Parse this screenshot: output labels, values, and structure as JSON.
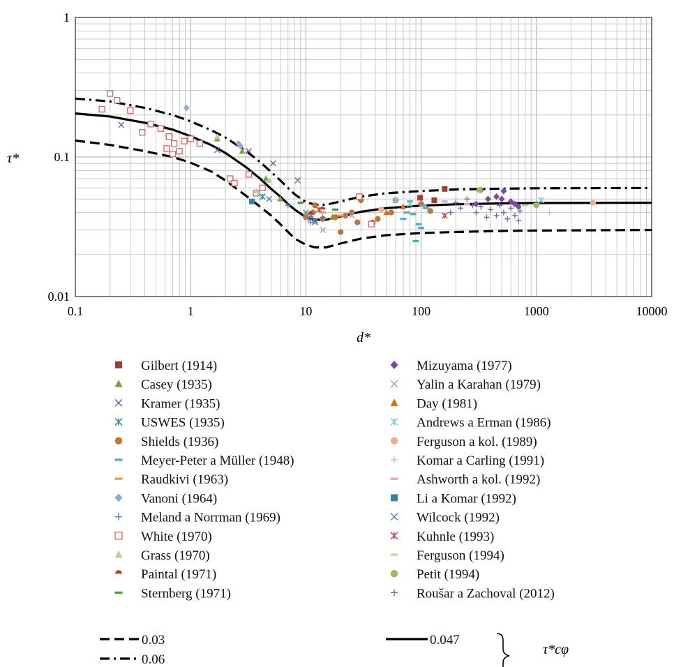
{
  "chart_data": {
    "type": "scatter",
    "x_scale": "log",
    "y_scale": "log",
    "xlim": [
      0.1,
      10000
    ],
    "ylim": [
      0.01,
      1
    ],
    "grid": true,
    "xlabel": "d*",
    "ylabel": "τ*",
    "x_ticks": [
      "0.1",
      "1",
      "10",
      "100",
      "1000",
      "10000"
    ],
    "y_ticks": [
      "0.01",
      "0.1",
      "1"
    ],
    "legend_placement": "below",
    "series": [
      {
        "name": "Gilbert (1914)",
        "marker": "square",
        "color": "#a33a3a",
        "points": [
          [
            160,
            0.059
          ],
          [
            98,
            0.051
          ],
          [
            130,
            0.049
          ]
        ]
      },
      {
        "name": "Casey (1935)",
        "marker": "triangle",
        "color": "#77a043",
        "points": [
          [
            1.7,
            0.135
          ],
          [
            2.8,
            0.11
          ],
          [
            4.5,
            0.07
          ],
          [
            17,
            0.037
          ],
          [
            6,
            0.05
          ]
        ]
      },
      {
        "name": "Kramer (1935)",
        "marker": "x",
        "color": "#7b5aa6",
        "points": [
          [
            0.25,
            0.17
          ],
          [
            1.7,
            0.112
          ],
          [
            3.2,
            0.11
          ],
          [
            5.2,
            0.09
          ],
          [
            8.5,
            0.068
          ],
          [
            12,
            0.034
          ],
          [
            11,
            0.036
          ]
        ]
      },
      {
        "name": "USWES (1935)",
        "marker": "asterisk",
        "color": "#3a8fa0",
        "points": [
          [
            4.2,
            0.052
          ],
          [
            11,
            0.038
          ],
          [
            12,
            0.035
          ]
        ]
      },
      {
        "name": "Shields (1936)",
        "marker": "circle",
        "color": "#c0763a",
        "points": [
          [
            10,
            0.037
          ],
          [
            11.5,
            0.04
          ],
          [
            12,
            0.045
          ],
          [
            14,
            0.036
          ],
          [
            18,
            0.037
          ],
          [
            20,
            0.029
          ],
          [
            22,
            0.038
          ],
          [
            25,
            0.04
          ],
          [
            28,
            0.034
          ],
          [
            30,
            0.049
          ],
          [
            38,
            0.034
          ],
          [
            42,
            0.036
          ],
          [
            55,
            0.04
          ],
          [
            60,
            0.049
          ],
          [
            100,
            0.046
          ],
          [
            120,
            0.041
          ]
        ]
      },
      {
        "name": "Meyer-Peter a Müller (1948)",
        "marker": "dash",
        "color": "#4bacc6",
        "points": [
          [
            70,
            0.036
          ],
          [
            75,
            0.04
          ],
          [
            80,
            0.048
          ],
          [
            90,
            0.025
          ],
          [
            95,
            0.033
          ],
          [
            100,
            0.031
          ],
          [
            105,
            0.045
          ],
          [
            110,
            0.043
          ],
          [
            85,
            0.039
          ]
        ]
      },
      {
        "name": "Raudkivi (1963)",
        "marker": "dash",
        "color": "#f79646",
        "points": [
          [
            14,
            0.04
          ],
          [
            20,
            0.038
          ]
        ]
      },
      {
        "name": "Vanoni (1964)",
        "marker": "diamond",
        "color": "#8eaad8",
        "points": [
          [
            0.92,
            0.225
          ],
          [
            2.6,
            0.125
          ],
          [
            2.7,
            0.12
          ]
        ]
      },
      {
        "name": "Meland a Norrman (1969)",
        "marker": "plus",
        "color": "#4f81bd",
        "points": [
          [
            7,
            0.045
          ],
          [
            11,
            0.034
          ],
          [
            14,
            0.037
          ]
        ]
      },
      {
        "name": "White (1970)",
        "marker": "open-square",
        "color": "#d06565",
        "points": [
          [
            0.17,
            0.22
          ],
          [
            0.2,
            0.285
          ],
          [
            0.23,
            0.255
          ],
          [
            0.3,
            0.215
          ],
          [
            0.38,
            0.15
          ],
          [
            0.45,
            0.172
          ],
          [
            0.55,
            0.16
          ],
          [
            0.62,
            0.115
          ],
          [
            0.65,
            0.14
          ],
          [
            0.7,
            0.105
          ],
          [
            0.72,
            0.125
          ],
          [
            0.8,
            0.11
          ],
          [
            0.88,
            0.13
          ],
          [
            1.0,
            0.135
          ],
          [
            1.2,
            0.125
          ],
          [
            2.2,
            0.07
          ],
          [
            2.4,
            0.065
          ],
          [
            3.2,
            0.075
          ],
          [
            3.7,
            0.055
          ],
          [
            4.2,
            0.06
          ],
          [
            29,
            0.052
          ],
          [
            37,
            0.033
          ]
        ]
      },
      {
        "name": "Grass (1970)",
        "marker": "triangle",
        "color": "#b8d38c",
        "points": [
          [
            1.7,
            0.14
          ],
          [
            3.7,
            0.057
          ],
          [
            4.8,
            0.068
          ]
        ]
      },
      {
        "name": "Paintal (1971)",
        "marker": "half-circle",
        "color": "#c0392b",
        "points": [
          [
            11,
            0.039
          ],
          [
            14,
            0.042
          ]
        ]
      },
      {
        "name": "Sternberg (1971)",
        "marker": "dash",
        "color": "#4f9a3a",
        "points": [
          [
            9,
            0.047
          ],
          [
            18,
            0.042
          ]
        ]
      },
      {
        "name": "Mizuyama (1977)",
        "marker": "diamond",
        "color": "#7b4aa0",
        "points": [
          [
            300,
            0.046
          ],
          [
            330,
            0.058
          ],
          [
            380,
            0.05
          ],
          [
            450,
            0.052
          ],
          [
            500,
            0.05
          ],
          [
            520,
            0.057
          ],
          [
            600,
            0.048
          ],
          [
            650,
            0.046
          ],
          [
            700,
            0.044
          ]
        ]
      },
      {
        "name": "Yalin a Karahan (1979)",
        "marker": "x",
        "color": "#a89bd0",
        "points": [
          [
            14,
            0.03
          ],
          [
            25,
            0.038
          ]
        ]
      },
      {
        "name": "Day (1981)",
        "marker": "triangle",
        "color": "#e36c09",
        "points": [
          [
            50,
            0.04
          ],
          [
            70,
            0.044
          ]
        ]
      },
      {
        "name": "Andrews a Erman (1986)",
        "marker": "asterisk",
        "color": "#7fcfe0",
        "points": [
          [
            60,
            0.049
          ],
          [
            80,
            0.046
          ],
          [
            1100,
            0.049
          ]
        ]
      },
      {
        "name": "Ferguson a kol. (1989)",
        "marker": "circle",
        "color": "#f4b183",
        "points": [
          [
            3100,
            0.047
          ],
          [
            45,
            0.042
          ]
        ]
      },
      {
        "name": "Komar a Carling (1991)",
        "marker": "plus",
        "color": "#a9c4eb",
        "points": [
          [
            1300,
            0.04
          ],
          [
            200,
            0.05
          ]
        ]
      },
      {
        "name": "Ashworth a kol. (1992)",
        "marker": "dash",
        "color": "#e6a0b4",
        "points": [
          [
            160,
            0.048
          ],
          [
            250,
            0.046
          ]
        ]
      },
      {
        "name": "Li a Komar (1992)",
        "marker": "square",
        "color": "#31859c",
        "points": [
          [
            3.4,
            0.048
          ]
        ]
      },
      {
        "name": "Wilcock (1992)",
        "marker": "x",
        "color": "#4f81bd",
        "points": [
          [
            4.8,
            0.05
          ],
          [
            10,
            0.04
          ]
        ]
      },
      {
        "name": "Kuhnle (1993)",
        "marker": "asterisk",
        "color": "#c0504d",
        "points": [
          [
            13,
            0.042
          ],
          [
            160,
            0.038
          ]
        ]
      },
      {
        "name": "Ferguson (1994)",
        "marker": "dash",
        "color": "#c4d79b",
        "points": [
          [
            800,
            0.045
          ],
          [
            1000,
            0.046
          ]
        ]
      },
      {
        "name": "Petit (1994)",
        "marker": "circle",
        "color": "#9bbb59",
        "points": [
          [
            320,
            0.058
          ],
          [
            1000,
            0.045
          ]
        ]
      },
      {
        "name": "Roušar a Zachoval (2012)",
        "marker": "plus",
        "color": "#8064a2",
        "points": [
          [
            180,
            0.04
          ],
          [
            200,
            0.047
          ],
          [
            220,
            0.043
          ],
          [
            250,
            0.05
          ],
          [
            280,
            0.045
          ],
          [
            300,
            0.04
          ],
          [
            330,
            0.044
          ],
          [
            370,
            0.037
          ],
          [
            400,
            0.042
          ],
          [
            450,
            0.038
          ],
          [
            480,
            0.045
          ],
          [
            520,
            0.04
          ],
          [
            560,
            0.036
          ],
          [
            600,
            0.043
          ],
          [
            650,
            0.038
          ],
          [
            700,
            0.035
          ],
          [
            720,
            0.041
          ]
        ]
      }
    ],
    "curves": [
      {
        "name": "0.03",
        "style": "dashed",
        "color": "#000000",
        "points": [
          [
            0.1,
            0.131
          ],
          [
            0.2,
            0.122
          ],
          [
            0.4,
            0.11
          ],
          [
            0.7,
            0.1
          ],
          [
            1,
            0.091
          ],
          [
            1.5,
            0.079
          ],
          [
            2,
            0.068
          ],
          [
            3,
            0.053
          ],
          [
            4,
            0.044
          ],
          [
            5,
            0.038
          ],
          [
            6,
            0.033
          ],
          [
            7,
            0.029
          ],
          [
            8,
            0.026
          ],
          [
            10,
            0.0235
          ],
          [
            12,
            0.0225
          ],
          [
            15,
            0.0225
          ],
          [
            20,
            0.024
          ],
          [
            30,
            0.026
          ],
          [
            50,
            0.0275
          ],
          [
            100,
            0.0285
          ],
          [
            200,
            0.029
          ],
          [
            500,
            0.0295
          ],
          [
            1000,
            0.0297
          ],
          [
            10000,
            0.03
          ]
        ]
      },
      {
        "name": "0.06",
        "style": "dash-dot",
        "color": "#000000",
        "points": [
          [
            0.1,
            0.262
          ],
          [
            0.2,
            0.25
          ],
          [
            0.4,
            0.225
          ],
          [
            0.7,
            0.2
          ],
          [
            1,
            0.18
          ],
          [
            1.5,
            0.156
          ],
          [
            2,
            0.138
          ],
          [
            3,
            0.111
          ],
          [
            4,
            0.092
          ],
          [
            5,
            0.078
          ],
          [
            6,
            0.068
          ],
          [
            7,
            0.06
          ],
          [
            8,
            0.054
          ],
          [
            10,
            0.0475
          ],
          [
            12,
            0.0455
          ],
          [
            15,
            0.0455
          ],
          [
            20,
            0.048
          ],
          [
            30,
            0.052
          ],
          [
            50,
            0.055
          ],
          [
            100,
            0.057
          ],
          [
            200,
            0.0585
          ],
          [
            500,
            0.0593
          ],
          [
            1000,
            0.0597
          ],
          [
            10000,
            0.06
          ]
        ]
      },
      {
        "name": "0.047",
        "style": "solid",
        "color": "#000000",
        "points": [
          [
            0.1,
            0.205
          ],
          [
            0.2,
            0.195
          ],
          [
            0.4,
            0.176
          ],
          [
            0.7,
            0.157
          ],
          [
            1,
            0.141
          ],
          [
            1.5,
            0.122
          ],
          [
            2,
            0.107
          ],
          [
            3,
            0.085
          ],
          [
            4,
            0.07
          ],
          [
            5,
            0.059
          ],
          [
            6,
            0.052
          ],
          [
            7,
            0.046
          ],
          [
            8,
            0.042
          ],
          [
            10,
            0.037
          ],
          [
            12,
            0.0355
          ],
          [
            15,
            0.0355
          ],
          [
            20,
            0.0375
          ],
          [
            30,
            0.0405
          ],
          [
            50,
            0.043
          ],
          [
            100,
            0.0448
          ],
          [
            200,
            0.0458
          ],
          [
            500,
            0.0465
          ],
          [
            1000,
            0.0468
          ],
          [
            10000,
            0.047
          ]
        ]
      }
    ],
    "brace_label": "τ*cφ"
  }
}
